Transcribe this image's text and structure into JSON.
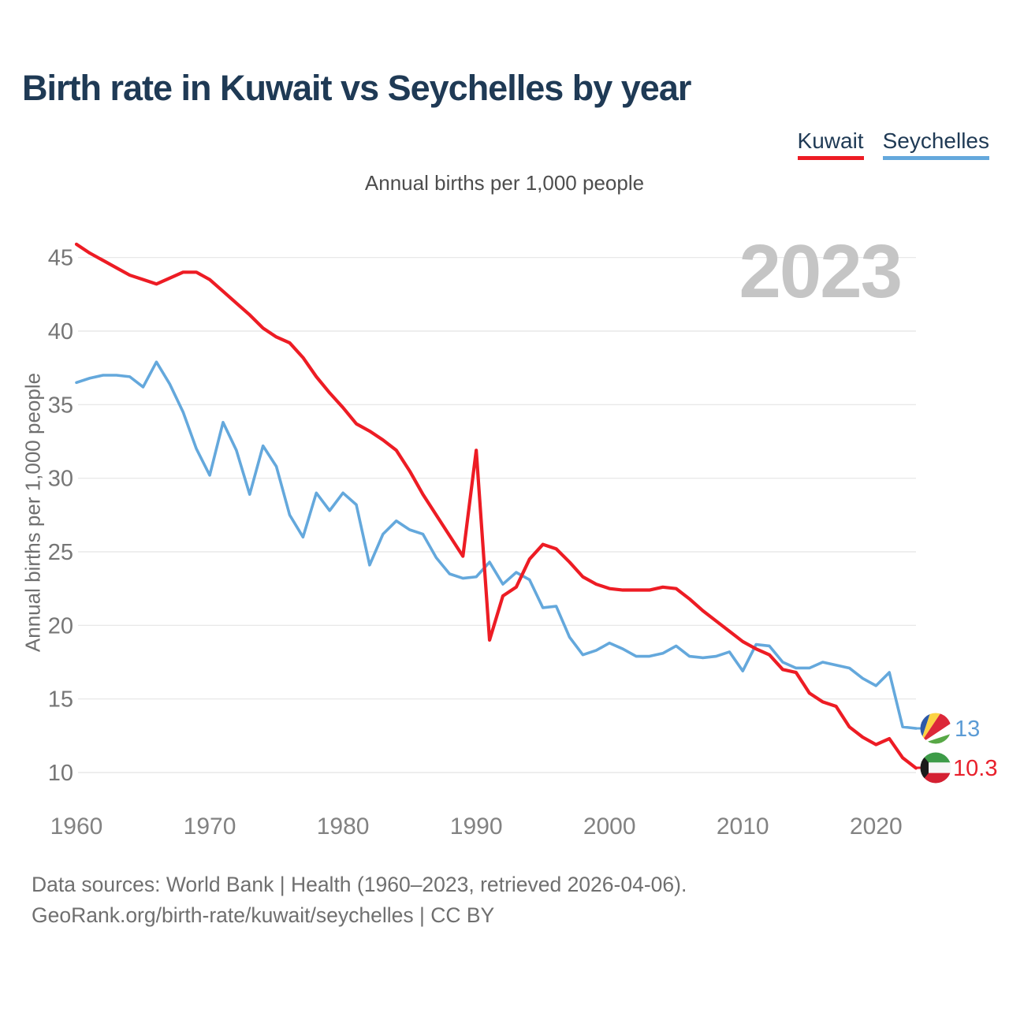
{
  "title": "Birth rate in Kuwait vs Seychelles by year",
  "subtitle": "Annual births per 1,000 people",
  "watermark": "2023",
  "legend": {
    "items": [
      {
        "label": "Kuwait",
        "color": "#ed1c24"
      },
      {
        "label": "Seychelles",
        "color": "#64a8dc"
      }
    ]
  },
  "y_axis": {
    "label": "Annual births per 1,000 people",
    "ticks": [
      10,
      15,
      20,
      25,
      30,
      35,
      40,
      45
    ]
  },
  "x_axis": {
    "ticks": [
      1960,
      1970,
      1980,
      1990,
      2000,
      2010,
      2020
    ]
  },
  "end_labels": [
    {
      "series": "Seychelles",
      "value": "13",
      "color": "#5b9bd5",
      "flag": "seychelles-flag"
    },
    {
      "series": "Kuwait",
      "value": "10.3",
      "color": "#e8212c",
      "flag": "kuwait-flag"
    }
  ],
  "footer": {
    "line1": "Data sources: World Bank | Health (1960–2023, retrieved 2026-04-06).",
    "line2": "GeoRank.org/birth-rate/kuwait/seychelles | CC BY"
  },
  "chart_data": {
    "type": "line",
    "title": "Birth rate in Kuwait vs Seychelles by year",
    "xlabel": "",
    "ylabel": "Annual births per 1,000 people",
    "xlim": [
      1960,
      2023
    ],
    "ylim": [
      8.5,
      46.5
    ],
    "grid": "horizontal",
    "legend_position": "top-right",
    "x": [
      1960,
      1961,
      1962,
      1963,
      1964,
      1965,
      1966,
      1967,
      1968,
      1969,
      1970,
      1971,
      1972,
      1973,
      1974,
      1975,
      1976,
      1977,
      1978,
      1979,
      1980,
      1981,
      1982,
      1983,
      1984,
      1985,
      1986,
      1987,
      1988,
      1989,
      1990,
      1991,
      1992,
      1993,
      1994,
      1995,
      1996,
      1997,
      1998,
      1999,
      2000,
      2001,
      2002,
      2003,
      2004,
      2005,
      2006,
      2007,
      2008,
      2009,
      2010,
      2011,
      2012,
      2013,
      2014,
      2015,
      2016,
      2017,
      2018,
      2019,
      2020,
      2021,
      2022,
      2023
    ],
    "series": [
      {
        "name": "Kuwait",
        "color": "#ed1c24",
        "values": [
          45.9,
          45.3,
          44.8,
          44.3,
          43.8,
          43.5,
          43.2,
          43.6,
          44.0,
          44.0,
          43.5,
          42.7,
          41.9,
          41.1,
          40.2,
          39.6,
          39.2,
          38.2,
          36.9,
          35.8,
          34.8,
          33.7,
          33.2,
          32.6,
          31.9,
          30.5,
          28.9,
          27.5,
          26.1,
          24.7,
          31.9,
          19.0,
          22.0,
          22.6,
          24.5,
          25.5,
          25.2,
          24.3,
          23.3,
          22.8,
          22.5,
          22.4,
          22.4,
          22.4,
          22.6,
          22.5,
          21.8,
          21.0,
          20.3,
          19.6,
          18.9,
          18.4,
          18.0,
          17.0,
          16.8,
          15.4,
          14.8,
          14.5,
          13.1,
          12.4,
          11.9,
          12.3,
          11.0,
          10.3
        ]
      },
      {
        "name": "Seychelles",
        "color": "#64a8dc",
        "values": [
          36.5,
          36.8,
          37.0,
          37.0,
          36.9,
          36.2,
          37.9,
          36.4,
          34.5,
          32.0,
          30.2,
          33.8,
          31.9,
          28.9,
          32.2,
          30.8,
          27.5,
          26.0,
          29.0,
          27.8,
          29.0,
          28.2,
          24.1,
          26.2,
          27.1,
          26.5,
          26.2,
          24.6,
          23.5,
          23.2,
          23.3,
          24.3,
          22.8,
          23.6,
          23.1,
          21.2,
          21.3,
          19.2,
          18.0,
          18.3,
          18.8,
          18.4,
          17.9,
          17.9,
          18.1,
          18.6,
          17.9,
          17.8,
          17.9,
          18.2,
          16.9,
          18.7,
          18.6,
          17.5,
          17.1,
          17.1,
          17.5,
          17.3,
          17.1,
          16.4,
          15.9,
          16.8,
          13.1,
          13.0
        ]
      }
    ]
  }
}
